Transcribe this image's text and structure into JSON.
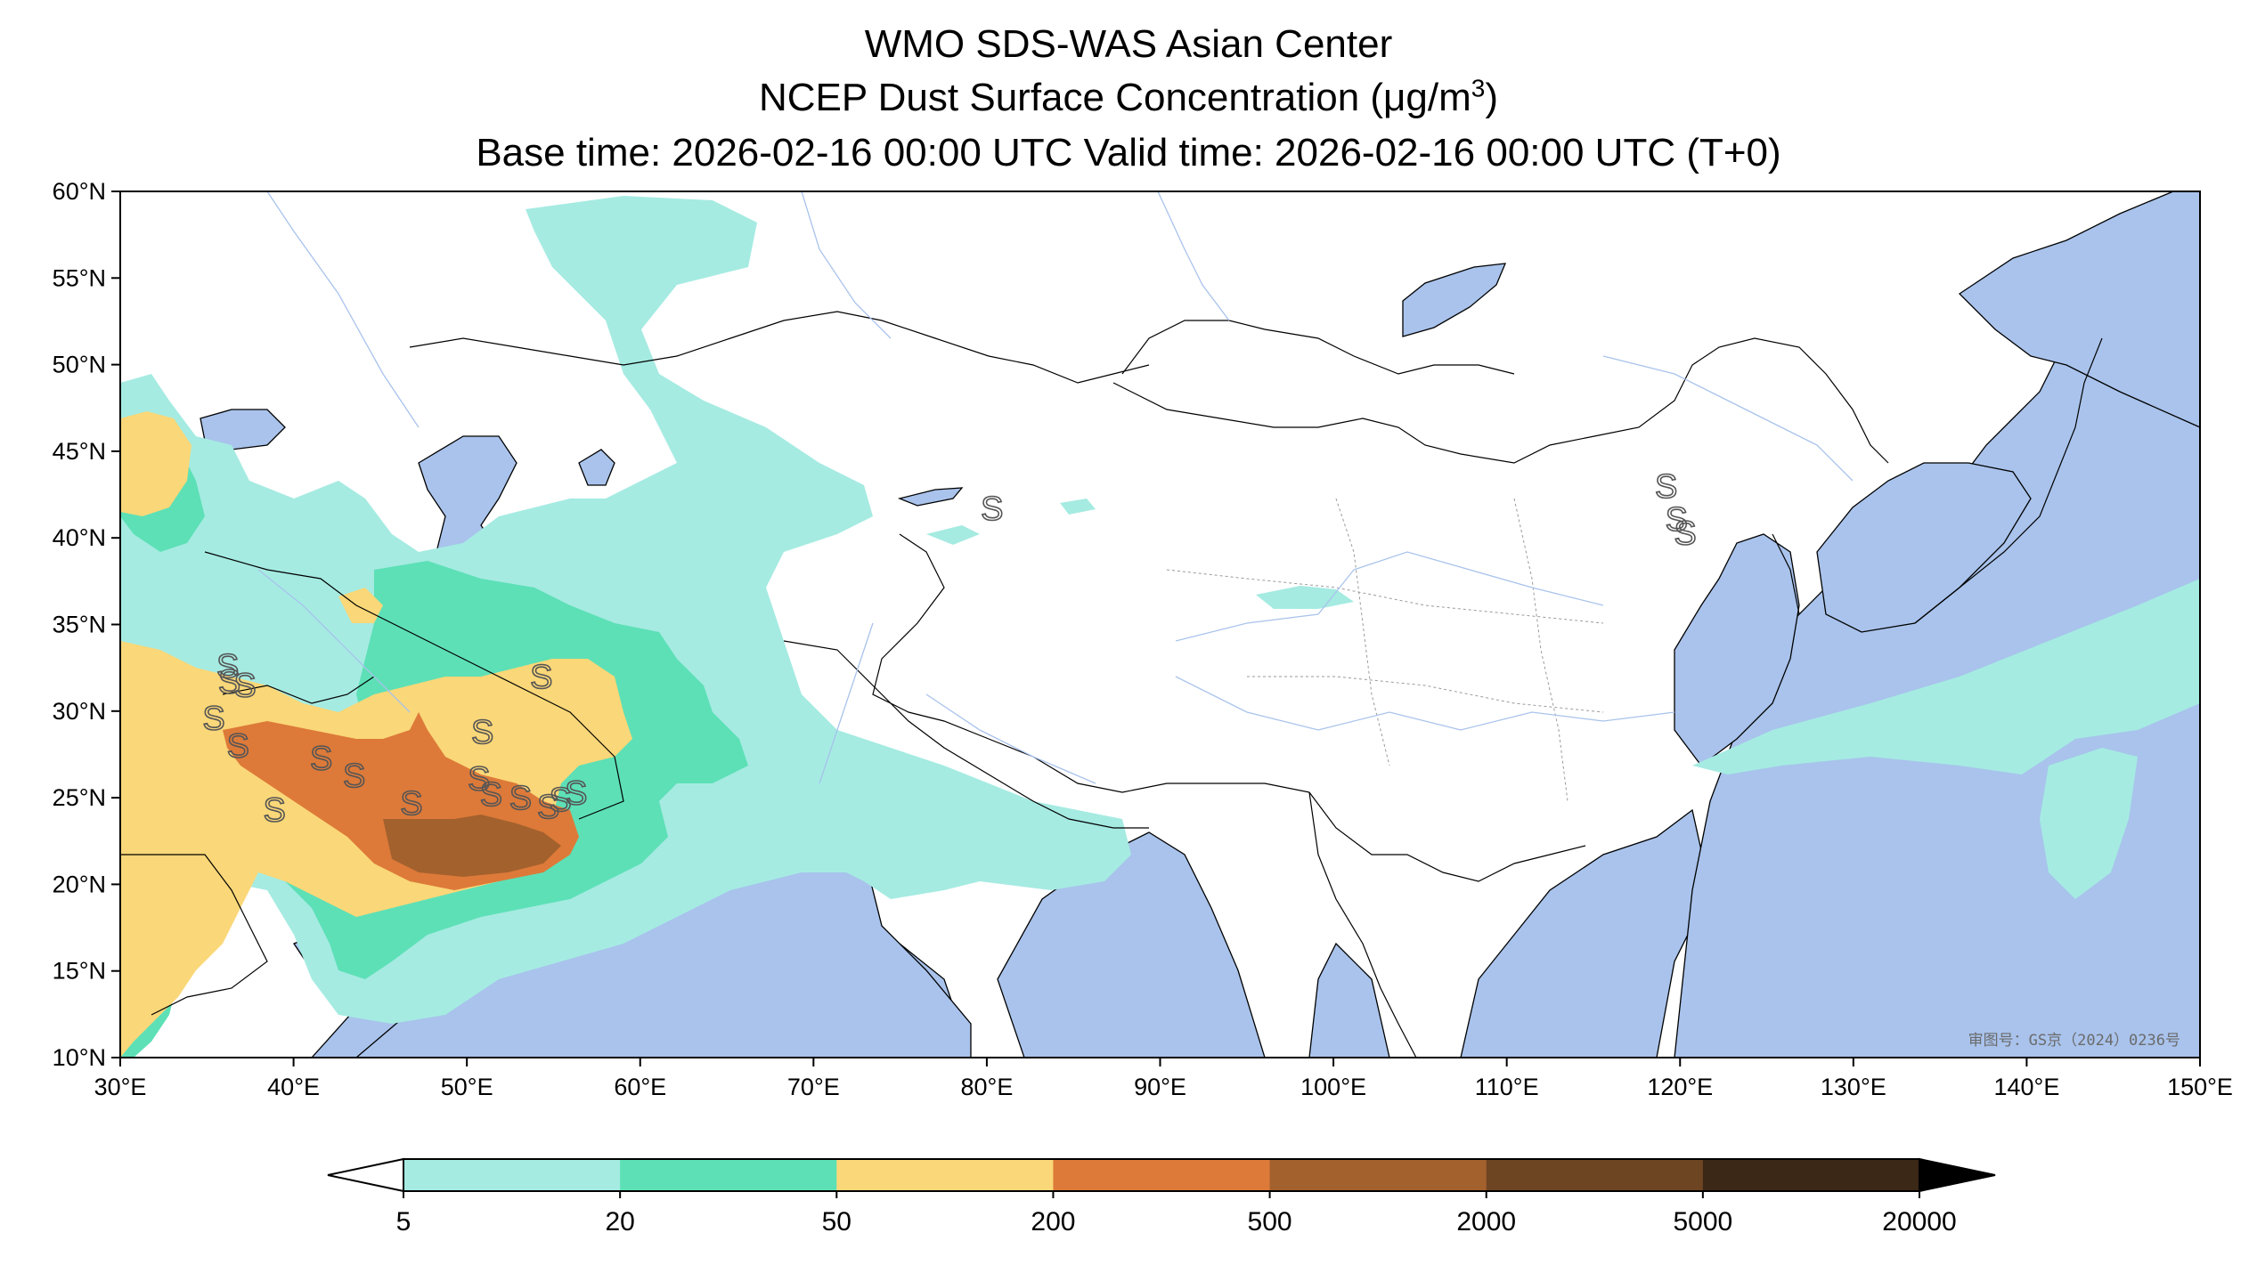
{
  "title": {
    "line1": "WMO SDS-WAS Asian Center",
    "line2_pre": "NCEP Dust Surface Concentration (",
    "line2_mu": "μ",
    "line2_unit": "g/m",
    "line2_sup": "3",
    "line2_post": ")",
    "line3": "Base time: 2026-02-16 00:00 UTC Valid time: 2026-02-16 00:00 UTC (T+0)"
  },
  "map": {
    "lon_range": [
      30,
      150
    ],
    "lat_range": [
      10,
      60
    ],
    "lon_ticks": [
      {
        "value": 30,
        "label": "30°E"
      },
      {
        "value": 40,
        "label": "40°E"
      },
      {
        "value": 50,
        "label": "50°E"
      },
      {
        "value": 60,
        "label": "60°E"
      },
      {
        "value": 70,
        "label": "70°E"
      },
      {
        "value": 80,
        "label": "80°E"
      },
      {
        "value": 90,
        "label": "90°E"
      },
      {
        "value": 100,
        "label": "100°E"
      },
      {
        "value": 110,
        "label": "110°E"
      },
      {
        "value": 120,
        "label": "120°E"
      },
      {
        "value": 130,
        "label": "130°E"
      },
      {
        "value": 140,
        "label": "140°E"
      },
      {
        "value": 150,
        "label": "150°E"
      }
    ],
    "lat_ticks": [
      {
        "value": 10,
        "label": "10°N"
      },
      {
        "value": 15,
        "label": "15°N"
      },
      {
        "value": 20,
        "label": "20°N"
      },
      {
        "value": 25,
        "label": "25°N"
      },
      {
        "value": 30,
        "label": "30°N"
      },
      {
        "value": 35,
        "label": "35°N"
      },
      {
        "value": 40,
        "label": "40°N"
      },
      {
        "value": 45,
        "label": "45°N"
      },
      {
        "value": 50,
        "label": "50°N"
      },
      {
        "value": 55,
        "label": "55°N"
      },
      {
        "value": 60,
        "label": "60°N"
      }
    ],
    "approval_number": "审图号：GS京（2024）0236号",
    "sea_color": "#a9c3ec",
    "land_color": "#ffffff",
    "station_marker": "S",
    "station_markers": [
      {
        "lon": 36.2,
        "lat": 32.6
      },
      {
        "lon": 36.3,
        "lat": 31.7
      },
      {
        "lon": 37.2,
        "lat": 31.5
      },
      {
        "lon": 35.4,
        "lat": 29.6
      },
      {
        "lon": 36.8,
        "lat": 28.0
      },
      {
        "lon": 41.6,
        "lat": 27.3
      },
      {
        "lon": 43.5,
        "lat": 26.3
      },
      {
        "lon": 38.9,
        "lat": 24.3
      },
      {
        "lon": 46.8,
        "lat": 24.7
      },
      {
        "lon": 54.3,
        "lat": 32.0
      },
      {
        "lon": 50.9,
        "lat": 28.8
      },
      {
        "lon": 50.7,
        "lat": 26.1
      },
      {
        "lon": 51.4,
        "lat": 25.2
      },
      {
        "lon": 53.1,
        "lat": 25.0
      },
      {
        "lon": 54.7,
        "lat": 24.5
      },
      {
        "lon": 55.4,
        "lat": 24.9
      },
      {
        "lon": 56.3,
        "lat": 25.3
      },
      {
        "lon": 80.3,
        "lat": 41.7
      },
      {
        "lon": 119.2,
        "lat": 43.0
      },
      {
        "lon": 119.8,
        "lat": 41.1
      },
      {
        "lon": 120.3,
        "lat": 40.3
      }
    ]
  },
  "colorbar": {
    "levels": [
      5,
      20,
      50,
      200,
      500,
      2000,
      5000,
      20000
    ],
    "labels": [
      "5",
      "20",
      "50",
      "200",
      "500",
      "2000",
      "5000",
      "20000"
    ],
    "colors": [
      "#a5ebe2",
      "#5de0b6",
      "#fad778",
      "#dd7a39",
      "#a3612d",
      "#6e4523",
      "#3c2817"
    ],
    "extend": "both"
  }
}
